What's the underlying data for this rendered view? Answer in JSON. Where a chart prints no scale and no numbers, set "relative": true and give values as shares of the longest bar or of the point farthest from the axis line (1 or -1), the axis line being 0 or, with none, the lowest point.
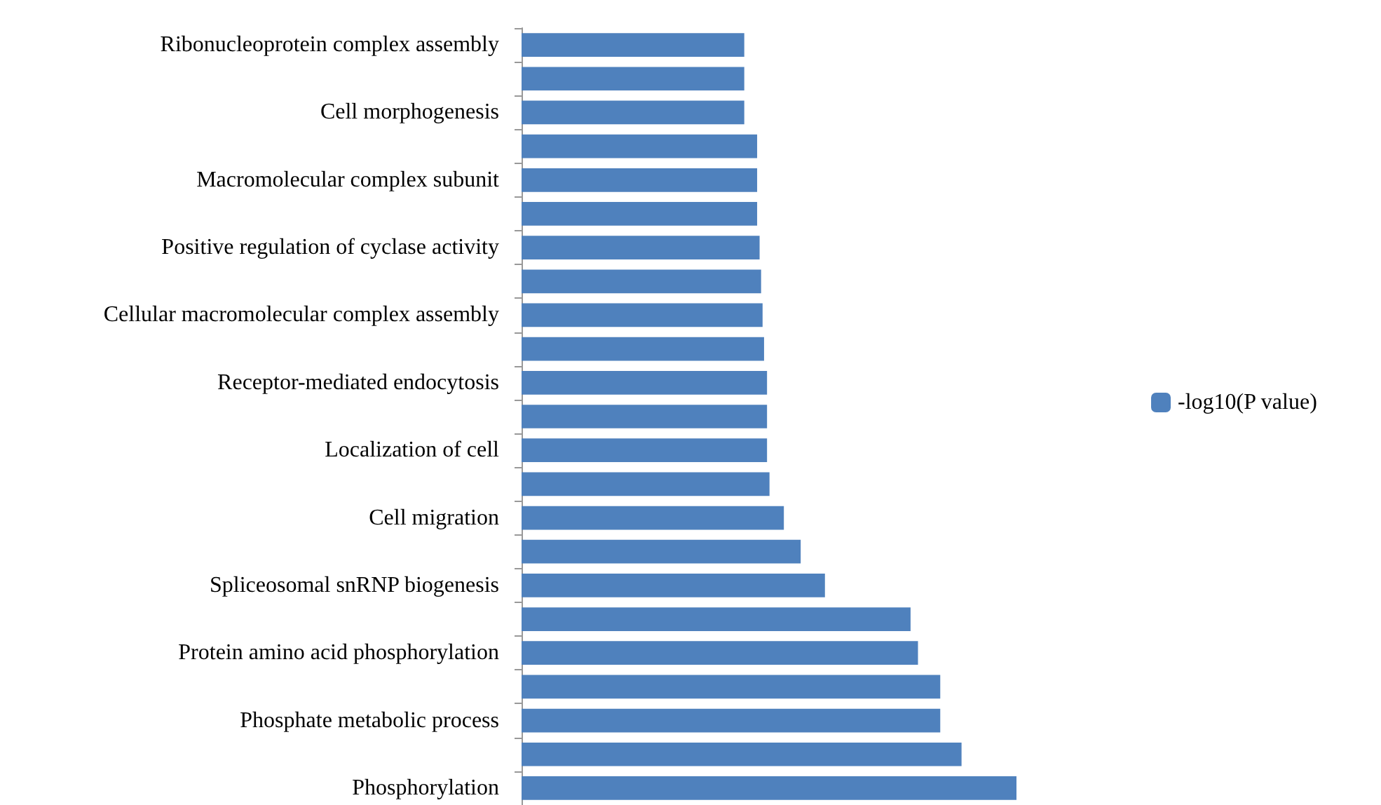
{
  "chart_data": {
    "type": "bar",
    "orientation": "horizontal",
    "relative": true,
    "legend": "right",
    "categories": [
      "Ribonucleoprotein complex assembly",
      null,
      "Cell morphogenesis",
      null,
      "Macromolecular complex subunit",
      null,
      "Positive regulation of cyclase activity",
      null,
      "Cellular macromolecular complex assembly",
      null,
      "Receptor-mediated endocytosis",
      null,
      "Localization of cell",
      null,
      "Cell migration",
      null,
      "Spliceosomal snRNP biogenesis",
      null,
      "Protein amino acid phosphorylation",
      null,
      "Phosphate metabolic process",
      null,
      "Phosphorylation"
    ],
    "series": [
      {
        "name": "-log10(P value)",
        "color": "#4f81bd",
        "values": [
          0.45,
          0.45,
          0.45,
          0.476,
          0.476,
          0.476,
          0.481,
          0.484,
          0.487,
          0.49,
          0.496,
          0.496,
          0.496,
          0.501,
          0.53,
          0.564,
          0.613,
          0.786,
          0.801,
          0.846,
          0.846,
          0.889,
          1
        ]
      }
    ]
  }
}
